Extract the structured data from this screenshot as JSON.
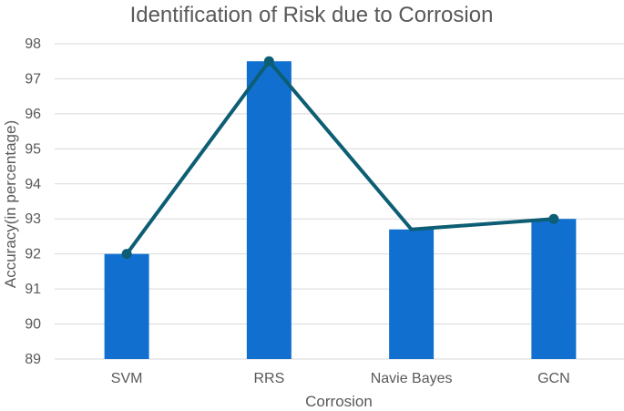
{
  "chart_data": {
    "type": "bar",
    "title": "Identification of Risk due to Corrosion",
    "xlabel": "Corrosion",
    "ylabel": "Accuracy(in percentage)",
    "categories": [
      "SVM",
      "RRS",
      "Navie Bayes",
      "GCN"
    ],
    "series": [
      {
        "type": "bar",
        "values": [
          92.0,
          97.5,
          92.7,
          93.0
        ]
      },
      {
        "type": "line",
        "values": [
          92.0,
          97.5,
          92.7,
          93.0
        ],
        "markers": [
          true,
          true,
          false,
          true
        ]
      }
    ],
    "ylim": [
      89,
      98
    ],
    "yticks": [
      89,
      90,
      91,
      92,
      93,
      94,
      95,
      96,
      97,
      98
    ],
    "grid": true,
    "legend": "none",
    "colors": {
      "bar": "#1170CF",
      "line": "#0D5E74",
      "grid": "#D9D9D9",
      "text": "#595959",
      "title": "#595959"
    }
  }
}
